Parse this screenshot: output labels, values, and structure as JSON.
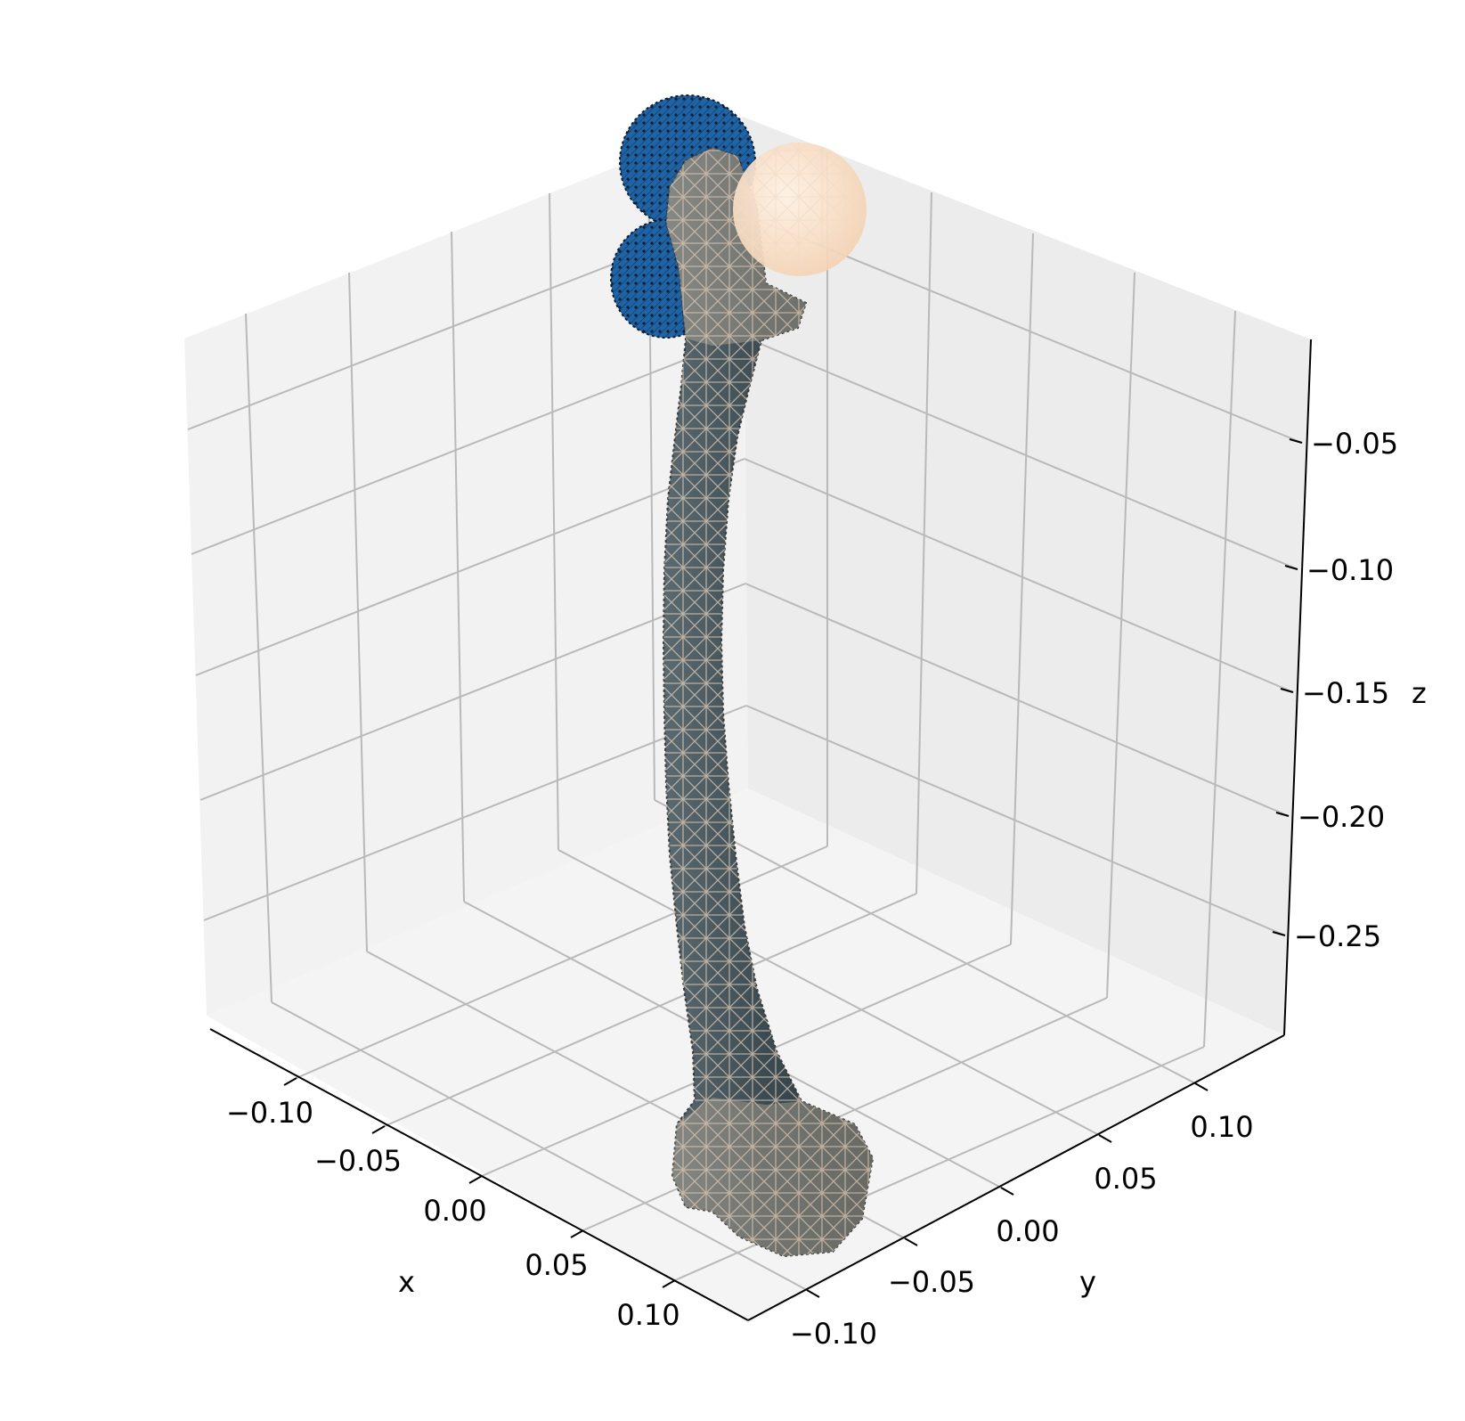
{
  "chart_data": {
    "type": "3d-mesh",
    "title": "",
    "xlabel": "x",
    "ylabel": "y",
    "zlabel": "z",
    "x_ticks": [
      "−0.10",
      "−0.05",
      "0.00",
      "0.05",
      "0.10"
    ],
    "y_ticks": [
      "−0.10",
      "−0.05",
      "0.00",
      "0.05",
      "0.10"
    ],
    "z_ticks": [
      "−0.05",
      "−0.10",
      "−0.15",
      "−0.20",
      "−0.25"
    ],
    "x_tick_values": [
      -0.1,
      -0.05,
      0.0,
      0.05,
      0.1
    ],
    "y_tick_values": [
      -0.1,
      -0.05,
      0.0,
      0.05,
      0.1
    ],
    "z_tick_values": [
      -0.05,
      -0.1,
      -0.15,
      -0.2,
      -0.25
    ],
    "grid": true,
    "objects": [
      {
        "kind": "surface",
        "shape": "femur bone",
        "color": "#3d4d52",
        "wireframe_color": "#f5dcc6"
      },
      {
        "kind": "point-cloud",
        "shape": "two spheres",
        "color": "#2266a8"
      },
      {
        "kind": "sphere",
        "shape": "femoral head",
        "color": "#fde3cb"
      }
    ]
  }
}
